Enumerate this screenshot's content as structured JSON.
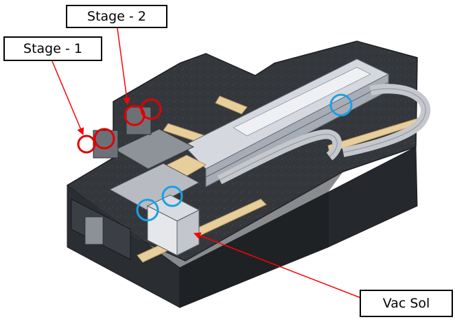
{
  "labels": {
    "stage_1": "Stage - 1",
    "stage_2": "Stage - 2",
    "vac_sol": "Vac Sol"
  },
  "colors": {
    "granite": "#34383d",
    "granite_dark": "#202326",
    "granite_light": "#4a4f55",
    "rail": "#c9ced6",
    "rail_dark": "#8d939c",
    "wood": "#e7cf9c",
    "wood_dark": "#b9915a",
    "cable": "#c4c7cc",
    "pointer": "#ff0000",
    "red_marker": "#e00000",
    "blue_marker": "#1aa0e6",
    "callout_border": "#000000"
  },
  "icons": {
    "stage_markers": "red-circle-marker",
    "vac_markers": "blue-circle-marker"
  }
}
